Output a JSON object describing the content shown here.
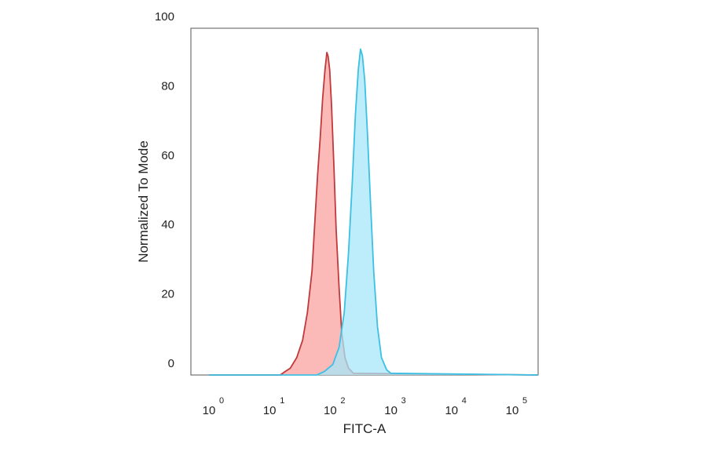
{
  "chart_data": {
    "type": "area",
    "xlabel": "FITC-A",
    "ylabel": "Normalized To Mode",
    "x_scale": "log",
    "xlim": [
      1,
      300000
    ],
    "ylim": [
      0,
      100
    ],
    "x_ticks": [
      {
        "base": "10",
        "exp": "0",
        "value": 1
      },
      {
        "base": "10",
        "exp": "1",
        "value": 10
      },
      {
        "base": "10",
        "exp": "2",
        "value": 100
      },
      {
        "base": "10",
        "exp": "3",
        "value": 1000
      },
      {
        "base": "10",
        "exp": "4",
        "value": 10000
      },
      {
        "base": "10",
        "exp": "5",
        "value": 100000
      }
    ],
    "y_ticks": [
      0,
      20,
      40,
      60,
      80,
      100
    ],
    "grid": false,
    "series": [
      {
        "color_fill": "#f9a3a0",
        "color_line": "#c0393b",
        "points": [
          [
            1,
            0
          ],
          [
            15,
            0
          ],
          [
            18,
            1
          ],
          [
            22,
            2
          ],
          [
            28,
            5
          ],
          [
            35,
            10
          ],
          [
            42,
            18
          ],
          [
            50,
            30
          ],
          [
            56,
            45
          ],
          [
            62,
            58
          ],
          [
            68,
            68
          ],
          [
            75,
            80
          ],
          [
            82,
            88
          ],
          [
            88,
            93
          ],
          [
            92,
            92
          ],
          [
            98,
            88
          ],
          [
            105,
            78
          ],
          [
            115,
            60
          ],
          [
            125,
            42
          ],
          [
            140,
            25
          ],
          [
            155,
            12
          ],
          [
            175,
            5
          ],
          [
            200,
            2
          ],
          [
            240,
            0.5
          ],
          [
            300000,
            0
          ]
        ]
      },
      {
        "color_fill": "#a7e6f8",
        "color_line": "#3cc0e3",
        "points": [
          [
            1,
            0
          ],
          [
            60,
            0
          ],
          [
            80,
            1
          ],
          [
            110,
            3
          ],
          [
            140,
            8
          ],
          [
            170,
            18
          ],
          [
            200,
            35
          ],
          [
            230,
            55
          ],
          [
            260,
            75
          ],
          [
            290,
            88
          ],
          [
            315,
            94
          ],
          [
            340,
            92
          ],
          [
            370,
            85
          ],
          [
            410,
            70
          ],
          [
            460,
            50
          ],
          [
            520,
            30
          ],
          [
            600,
            14
          ],
          [
            700,
            5
          ],
          [
            850,
            1.5
          ],
          [
            1000,
            0.5
          ],
          [
            300000,
            0
          ]
        ]
      }
    ]
  }
}
